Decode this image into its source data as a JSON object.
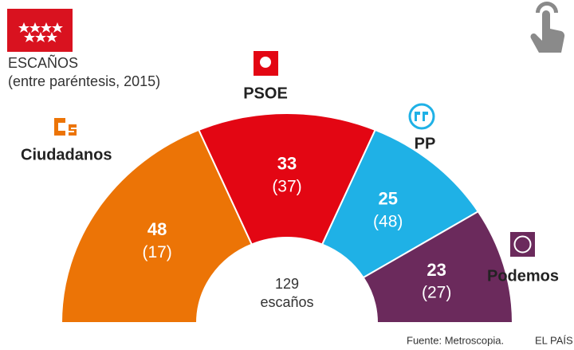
{
  "chart_data": {
    "type": "parliament",
    "title": "ESCAÑOS",
    "subtitle": "(entre paréntesis, 2015)",
    "categories": [
      "Ciudadanos",
      "PSOE",
      "PP",
      "Podemos"
    ],
    "values": [
      48,
      33,
      25,
      23
    ],
    "values_2015": [
      17,
      37,
      48,
      27
    ],
    "value_labels_2015": [
      "(17)",
      "(37)",
      "(48)",
      "(27)"
    ],
    "colors": [
      "#ec7406",
      "#e30613",
      "#1fb1e6",
      "#6b2a5c"
    ],
    "center_value": 129,
    "center_label": "escaños",
    "source": "Fuente: Metroscopia.",
    "brand": "EL PAÍS"
  }
}
